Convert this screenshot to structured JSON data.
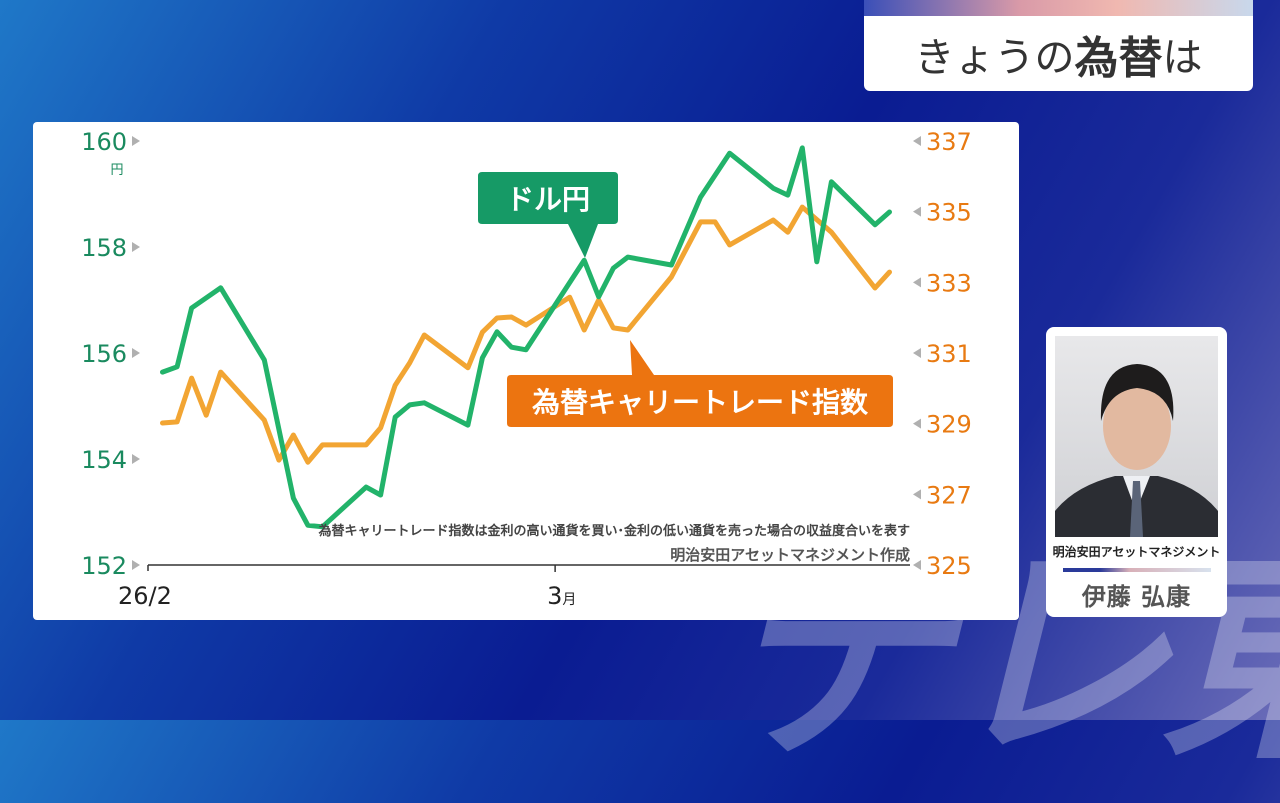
{
  "watermark": "テレ東",
  "title": {
    "prefix": "きょうの",
    "bold": "為替",
    "suffix": "は"
  },
  "presenter": {
    "company": "明治安田アセットマネジメント",
    "name": "伊藤 弘康"
  },
  "colors": {
    "usdjpy": "#22b36a",
    "carry": "#f2a533",
    "left_axis": "#1a8a5f",
    "right_axis": "#e87a12",
    "callout_green": "#169a66",
    "callout_orange": "#ec7410"
  },
  "chart_data": {
    "type": "line",
    "title": "きょうの為替は",
    "x_unit": "day of month from 2026-02-01",
    "xlim": [
      0,
      52
    ],
    "x_ticks": [
      {
        "x": 0,
        "label": "26/2"
      },
      {
        "x": 28,
        "label": "3",
        "unit": "月"
      }
    ],
    "left_axis": {
      "label_unit": "円",
      "ylim": [
        152,
        160
      ],
      "ticks": [
        160,
        158,
        156,
        154,
        152
      ]
    },
    "right_axis": {
      "ylim": [
        325,
        337
      ],
      "ticks": [
        337,
        335,
        333,
        331,
        329,
        327,
        325
      ]
    },
    "grid": false,
    "series": [
      {
        "name": "ドル円",
        "axis": "left",
        "x": [
          1,
          2,
          3,
          5,
          8,
          10,
          11,
          12,
          15,
          16,
          17,
          18,
          19,
          22,
          23,
          24,
          25,
          26,
          30,
          31,
          32,
          33,
          36,
          38,
          40,
          43,
          44,
          45,
          46,
          47,
          50,
          51
        ],
        "values": [
          155.64,
          155.74,
          156.85,
          157.23,
          155.87,
          153.26,
          152.75,
          152.72,
          153.47,
          153.32,
          154.79,
          155.02,
          155.06,
          154.64,
          155.91,
          156.4,
          156.11,
          156.06,
          157.75,
          157.06,
          157.6,
          157.81,
          157.66,
          158.94,
          159.77,
          159.11,
          158.98,
          159.87,
          157.72,
          159.23,
          158.42,
          158.66
        ]
      },
      {
        "name": "為替キャリートレード指数",
        "axis": "right",
        "x": [
          1,
          2,
          3,
          4,
          5,
          8,
          9,
          10,
          11,
          12,
          15,
          16,
          17,
          18,
          19,
          22,
          23,
          24,
          25,
          26,
          29,
          30,
          31,
          32,
          33,
          36,
          38,
          39,
          40,
          43,
          44,
          45,
          47,
          50,
          51
        ],
        "values": [
          329.02,
          329.05,
          330.29,
          329.24,
          330.46,
          329.1,
          327.97,
          328.68,
          327.91,
          328.4,
          328.4,
          328.88,
          330.09,
          330.72,
          331.51,
          330.58,
          331.59,
          331.99,
          332.02,
          331.79,
          332.58,
          331.65,
          332.5,
          331.71,
          331.65,
          333.15,
          334.71,
          334.71,
          334.06,
          334.76,
          334.42,
          335.13,
          334.42,
          332.84,
          333.29
        ]
      }
    ],
    "annotations": {
      "note": "為替キャリートレード指数は金利の高い通貨を買い･金利の低い通貨を売った場合の収益度合いを表す",
      "source": "明治安田アセットマネジメント作成"
    }
  }
}
